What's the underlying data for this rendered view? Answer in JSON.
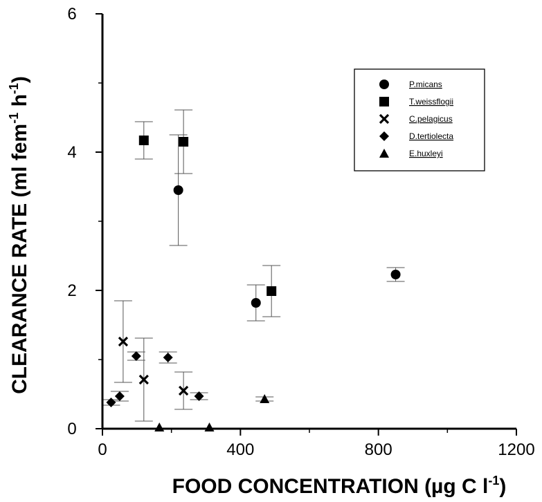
{
  "chart_data": {
    "type": "scatter",
    "xlabel": "FOOD CONCENTRATION (µg C l",
    "xlabel_sup": "-1",
    "xlabel_end": ")",
    "ylabel": "CLEARANCE RATE (ml fem",
    "ylabel_sup1": "-1",
    "ylabel_mid": " h",
    "ylabel_sup2": "-1",
    "ylabel_end": ")",
    "xlim": [
      0,
      1200
    ],
    "ylim": [
      0,
      6
    ],
    "xticks": [
      0,
      400,
      800,
      1200
    ],
    "xtick_labels": [
      "0",
      "400",
      "800",
      "1200"
    ],
    "yticks": [
      0,
      2,
      4,
      6
    ],
    "ytick_labels": [
      "0",
      "2",
      "4",
      "6"
    ],
    "grid": false,
    "legend_position": "top-right",
    "series": [
      {
        "name": "P.micans",
        "marker": "circle",
        "points": [
          {
            "x": 220,
            "y": 3.45,
            "err": 0.8
          },
          {
            "x": 445,
            "y": 1.82,
            "err": 0.26
          },
          {
            "x": 850,
            "y": 2.23,
            "err": 0.1
          }
        ]
      },
      {
        "name": "T.weissflogii",
        "marker": "square",
        "points": [
          {
            "x": 120,
            "y": 4.17,
            "err": 0.27
          },
          {
            "x": 235,
            "y": 4.15,
            "err": 0.46
          },
          {
            "x": 490,
            "y": 1.99,
            "err": 0.37
          }
        ]
      },
      {
        "name": "C.pelagicus",
        "marker": "cross",
        "points": [
          {
            "x": 60,
            "y": 1.26,
            "err": 0.59
          },
          {
            "x": 120,
            "y": 0.71,
            "err": 0.6
          },
          {
            "x": 235,
            "y": 0.55,
            "err": 0.27
          }
        ]
      },
      {
        "name": "D.tertiolecta",
        "marker": "diamond",
        "points": [
          {
            "x": 25,
            "y": 0.38,
            "err": 0.04
          },
          {
            "x": 50,
            "y": 0.47,
            "err": 0.07
          },
          {
            "x": 98,
            "y": 1.05,
            "err": 0.06
          },
          {
            "x": 190,
            "y": 1.03,
            "err": 0.08
          },
          {
            "x": 280,
            "y": 0.47,
            "err": 0.05
          }
        ]
      },
      {
        "name": "E.huxleyi",
        "marker": "triangle",
        "points": [
          {
            "x": 165,
            "y": 0.02,
            "err": 0
          },
          {
            "x": 310,
            "y": 0.02,
            "err": 0
          },
          {
            "x": 470,
            "y": 0.43,
            "err": 0.03
          }
        ]
      }
    ]
  }
}
